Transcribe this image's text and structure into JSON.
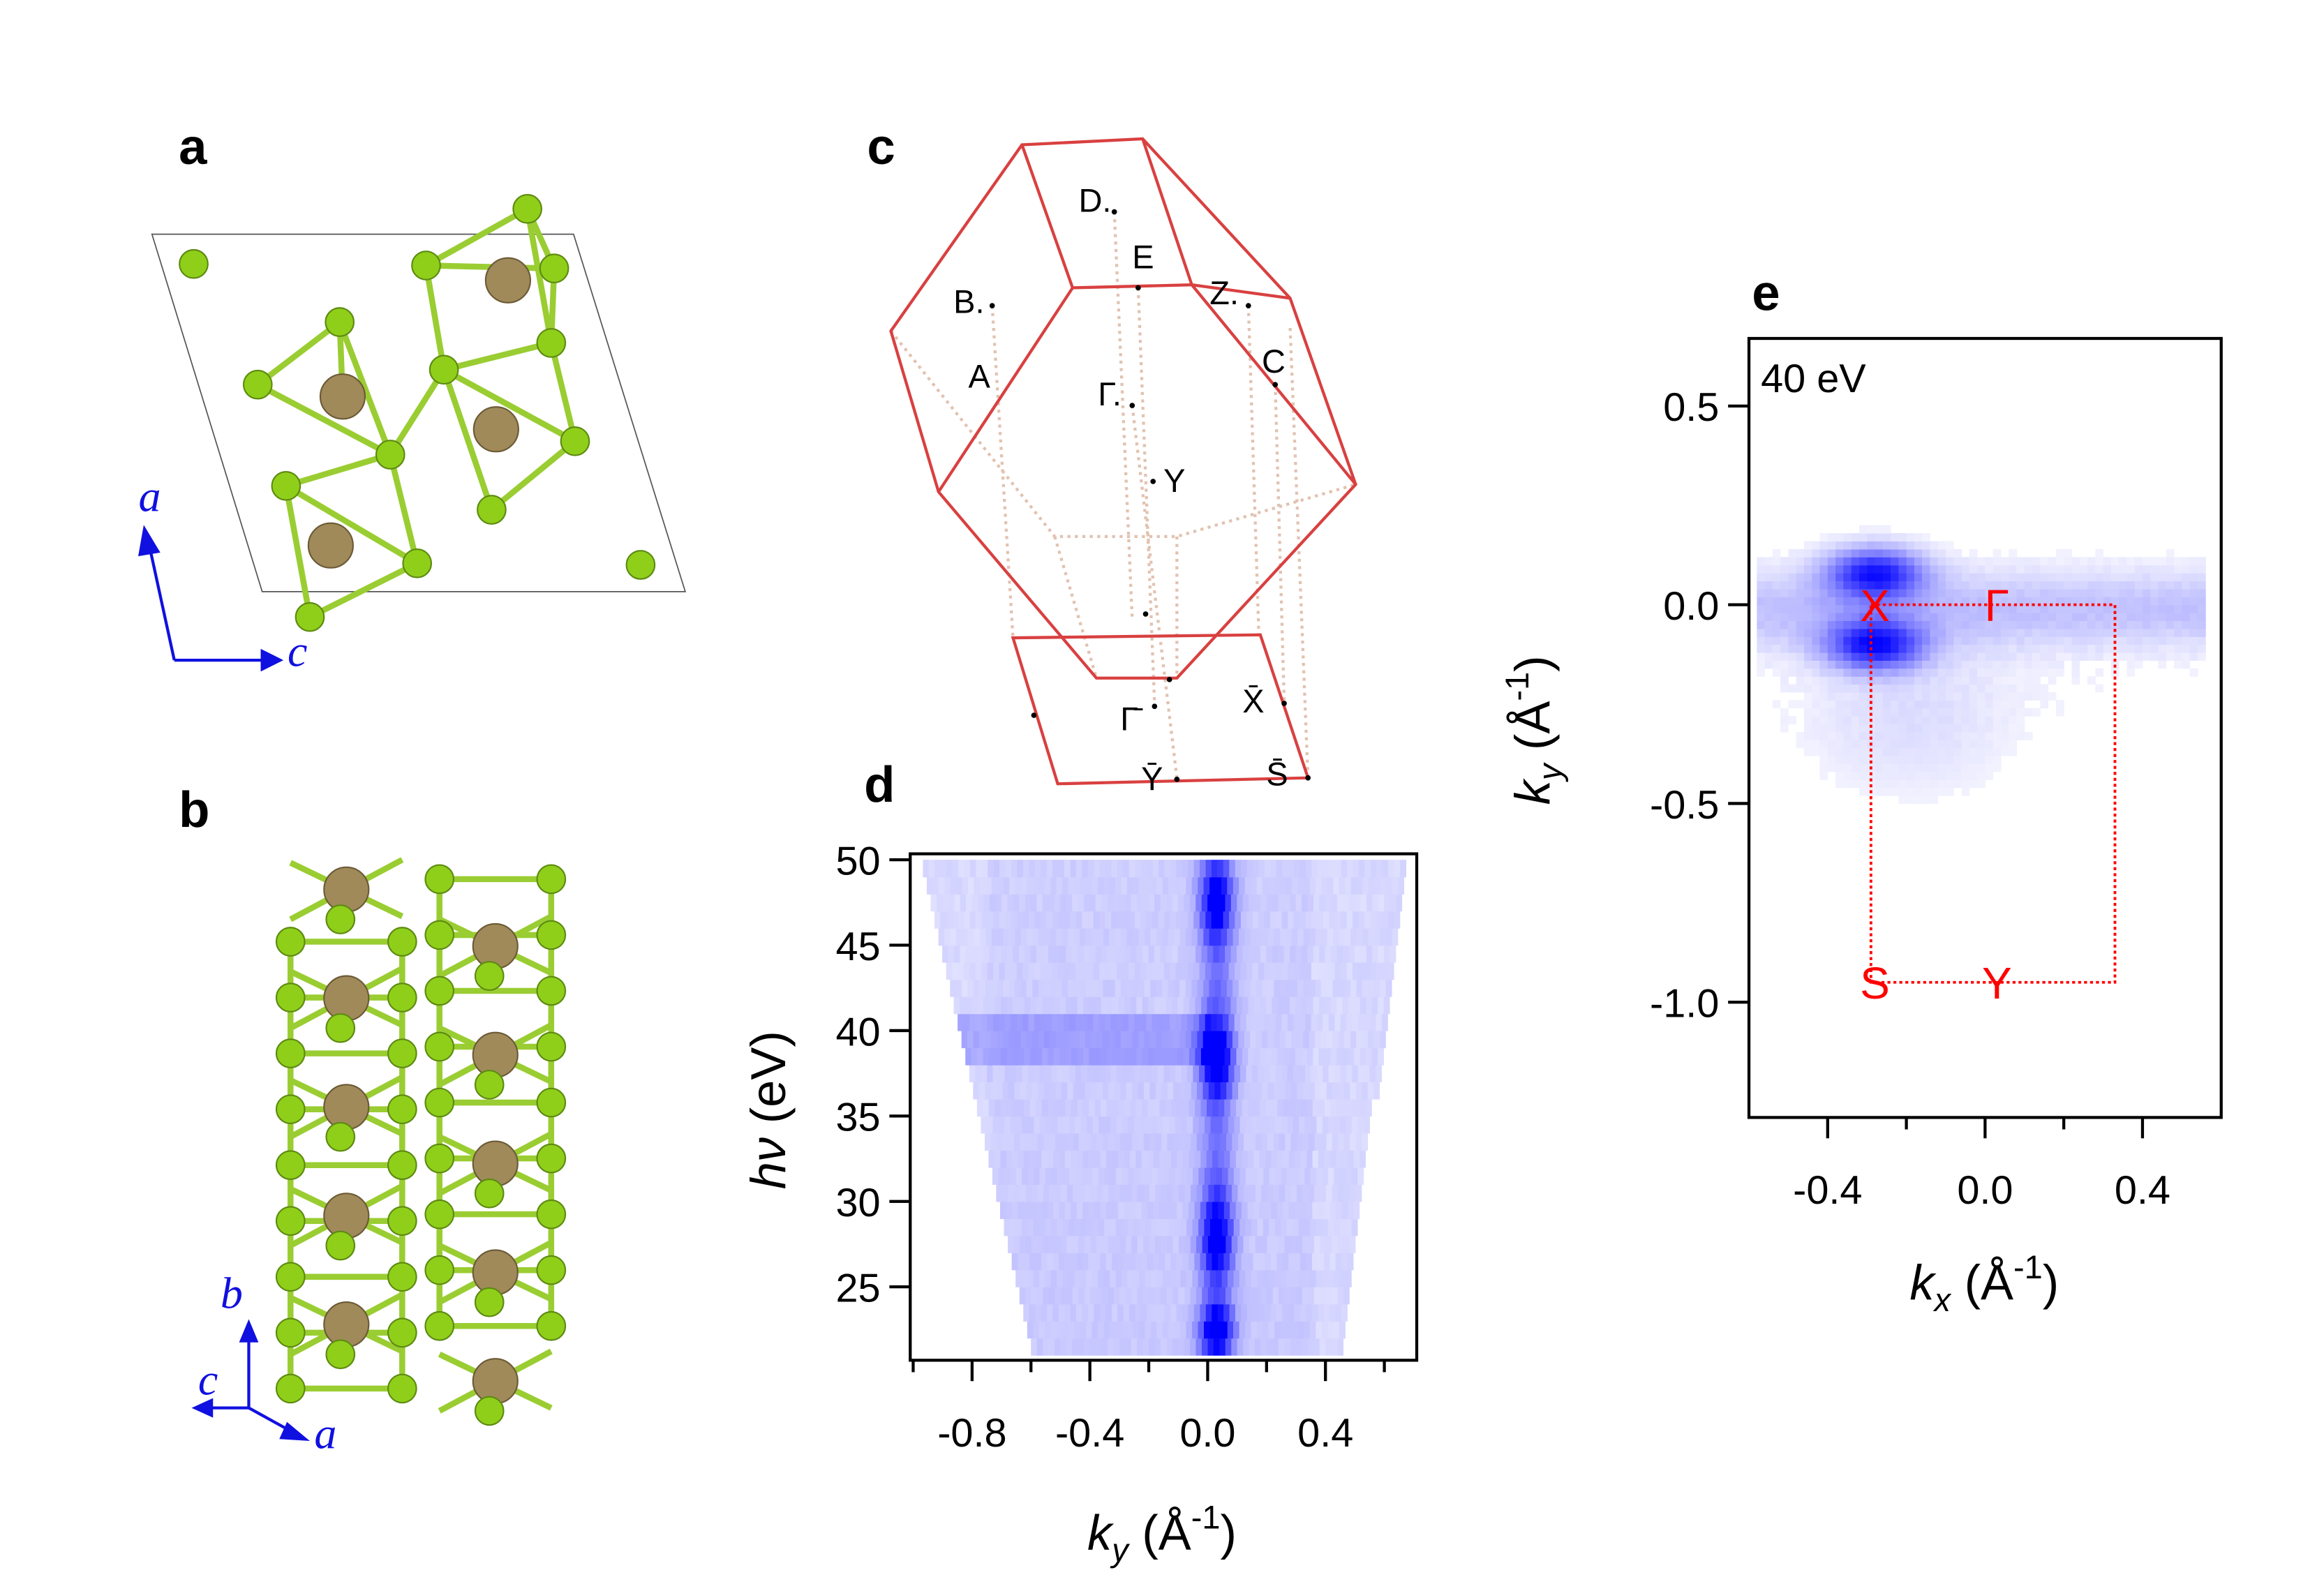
{
  "panels": {
    "a": {
      "label": "a",
      "axes": [
        "a",
        "c"
      ]
    },
    "b": {
      "label": "b",
      "axes": [
        "b",
        "c",
        "a"
      ]
    },
    "c": {
      "label": "c",
      "points": [
        "D.",
        "E",
        "B.",
        "A",
        "Γ.",
        "Y",
        "Z.",
        "C",
        "Γ̄",
        "X̄",
        "Ȳ",
        "S̄"
      ]
    },
    "d": {
      "label": "d"
    },
    "e": {
      "label": "e",
      "annotation": "40 eV",
      "bz_labels": [
        "X",
        "Γ",
        "S",
        "Y"
      ]
    }
  },
  "colors": {
    "atom_small": "#8fcf1a",
    "atom_large": "#a08a5a",
    "bond": "#9acd32",
    "bz_edge": "#d94040",
    "bz_dotted": "#e2c2b0",
    "map": "#0000ff",
    "bz_marker": "#ff0000",
    "axis_arrow": "#1010e0"
  },
  "chart_data": [
    {
      "type": "heatmap",
      "panel": "d",
      "xlabel": "k_y (Å^-1)",
      "ylabel": "hν (eV)",
      "xlim": [
        -1.01,
        0.71
      ],
      "ylim": [
        20.7,
        50.35
      ],
      "xticks": [
        "-0.8",
        "-0.4",
        "0.0",
        "0.4"
      ],
      "xtick_values": [
        -0.8,
        -0.4,
        0.0,
        0.4
      ],
      "yticks": [
        "25",
        "30",
        "35",
        "40",
        "45",
        "50"
      ],
      "ytick_values": [
        25,
        30,
        35,
        40,
        45,
        50
      ],
      "colormap": "white-to-blue",
      "data_extent": {
        "hv_50": [
          -0.98,
          0.67
        ],
        "hv_21": [
          -0.6,
          0.45
        ]
      },
      "band_center_ky": 0.02,
      "intensity_maxima_hv": [
        47,
        38,
        27.5,
        22
      ],
      "horizontal_feature_hv": 39,
      "grid": false
    },
    {
      "type": "heatmap",
      "panel": "e",
      "title": "40 eV",
      "xlabel": "k_x (Å^-1)",
      "ylabel": "k_y (Å^-1)",
      "xlim": [
        -0.6,
        0.6
      ],
      "ylim": [
        -1.29,
        0.67
      ],
      "xticks": [
        "-0.4",
        "0.0",
        "0.4"
      ],
      "xtick_values": [
        -0.4,
        0.0,
        0.4
      ],
      "yticks": [
        "0.5",
        "0.0",
        "-0.5",
        "-1.0"
      ],
      "ytick_values": [
        0.5,
        0.0,
        -0.5,
        -1.0
      ],
      "colormap": "white-to-blue",
      "pockets": [
        {
          "kx": -0.29,
          "ky": 0.07
        },
        {
          "kx": -0.29,
          "ky": -0.11
        }
      ],
      "brillouin_zone": {
        "kx": [
          -0.29,
          0.33
        ],
        "ky": [
          -0.95,
          0.0
        ]
      },
      "bz_points": [
        {
          "name": "X",
          "kx": -0.28,
          "ky": 0.0
        },
        {
          "name": "Γ",
          "kx": 0.03,
          "ky": 0.0
        },
        {
          "name": "S",
          "kx": -0.28,
          "ky": -0.95
        },
        {
          "name": "Y",
          "kx": 0.03,
          "ky": -0.95
        }
      ],
      "grid": false
    }
  ]
}
